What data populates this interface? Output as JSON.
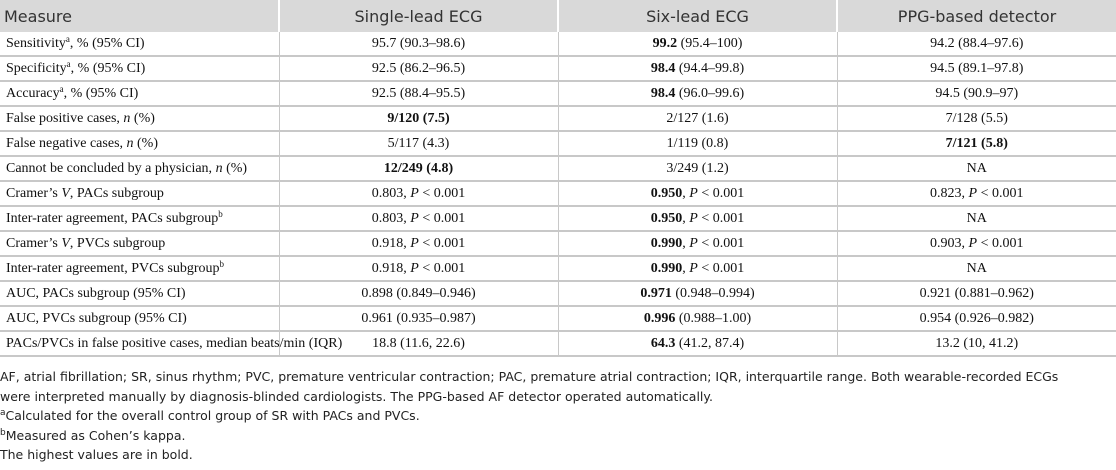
{
  "table": {
    "header": [
      "Measure",
      "Single-lead ECG",
      "Six-lead ECG",
      "PPG-based detector"
    ],
    "rows": [
      [
        [
          "Sensitivity",
          {
            "sup": "a"
          },
          ", % (95% CI)"
        ],
        "95.7 (90.3–98.6)",
        [
          {
            "b": "99.2"
          },
          " (95.4–100)"
        ],
        "94.2 (88.4–97.6)"
      ],
      [
        [
          "Specificity",
          {
            "sup": "a"
          },
          ", % (95% CI)"
        ],
        "92.5 (86.2–96.5)",
        [
          {
            "b": "98.4"
          },
          " (94.4–99.8)"
        ],
        "94.5 (89.1–97.8)"
      ],
      [
        [
          "Accuracy",
          {
            "sup": "a"
          },
          ", % (95% CI)"
        ],
        "92.5 (88.4–95.5)",
        [
          {
            "b": "98.4"
          },
          " (96.0–99.6)"
        ],
        "94.5 (90.9–97)"
      ],
      [
        [
          "False positive cases, ",
          {
            "i": "n"
          },
          " (%)"
        ],
        [
          {
            "b": "9/120 (7.5)"
          }
        ],
        "2/127 (1.6)",
        "7/128 (5.5)"
      ],
      [
        [
          "False negative cases, ",
          {
            "i": "n"
          },
          " (%)"
        ],
        "5/117 (4.3)",
        "1/119 (0.8)",
        [
          {
            "b": "7/121 (5.8)"
          }
        ]
      ],
      [
        [
          "Cannot be concluded by a physician, ",
          {
            "i": "n"
          },
          " (%)"
        ],
        [
          {
            "b": "12/249 (4.8)"
          }
        ],
        "3/249 (1.2)",
        "NA"
      ],
      [
        [
          "Cramer’s ",
          {
            "i": "V"
          },
          ", PACs subgroup"
        ],
        [
          "0.803, ",
          {
            "i": "P"
          },
          " < 0.001"
        ],
        [
          {
            "b": "0.950"
          },
          ", ",
          {
            "i": "P"
          },
          " < 0.001"
        ],
        [
          "0.823, ",
          {
            "i": "P"
          },
          " < 0.001"
        ]
      ],
      [
        [
          "Inter-rater agreement, PACs subgroup",
          {
            "sup": "b"
          }
        ],
        [
          "0.803, ",
          {
            "i": "P"
          },
          " < 0.001"
        ],
        [
          {
            "b": "0.950"
          },
          ", ",
          {
            "i": "P"
          },
          " < 0.001"
        ],
        "NA"
      ],
      [
        [
          "Cramer’s ",
          {
            "i": "V"
          },
          ", PVCs subgroup"
        ],
        [
          "0.918, ",
          {
            "i": "P"
          },
          " < 0.001"
        ],
        [
          {
            "b": "0.990"
          },
          ", ",
          {
            "i": "P"
          },
          " < 0.001"
        ],
        [
          "0.903, ",
          {
            "i": "P"
          },
          " < 0.001"
        ]
      ],
      [
        [
          "Inter-rater agreement, PVCs subgroup",
          {
            "sup": "b"
          }
        ],
        [
          "0.918, ",
          {
            "i": "P"
          },
          " < 0.001"
        ],
        [
          {
            "b": "0.990"
          },
          ", ",
          {
            "i": "P"
          },
          " < 0.001"
        ],
        "NA"
      ],
      [
        "AUC, PACs subgroup (95% CI)",
        "0.898 (0.849–0.946)",
        [
          {
            "b": "0.971"
          },
          " (0.948–0.994)"
        ],
        "0.921 (0.881–0.962)"
      ],
      [
        "AUC, PVCs subgroup (95% CI)",
        "0.961 (0.935–0.987)",
        [
          {
            "b": "0.996"
          },
          " (0.988–1.00)"
        ],
        "0.954 (0.926–0.982)"
      ],
      [
        "PACs/PVCs in false positive cases, median beats/min (IQR)",
        "18.8 (11.6, 22.6)",
        [
          {
            "b": "64.3"
          },
          " (41.2, 87.4)"
        ],
        "13.2 (10, 41.2)"
      ]
    ],
    "footnotes": [
      "AF, atrial fibrillation; SR, sinus rhythm; PVC, premature ventricular contraction; PAC, premature atrial contraction; IQR, interquartile range. Both wearable-recorded ECGs were interpreted manually by diagnosis-blinded cardiologists. The PPG-based AF detector operated automatically.",
      [
        {
          "sup": "a"
        },
        "Calculated for the overall control group of SR with PACs and PVCs."
      ],
      [
        {
          "sup": "b"
        },
        "Measured as Cohen’s kappa."
      ],
      "The highest values are in bold."
    ]
  }
}
